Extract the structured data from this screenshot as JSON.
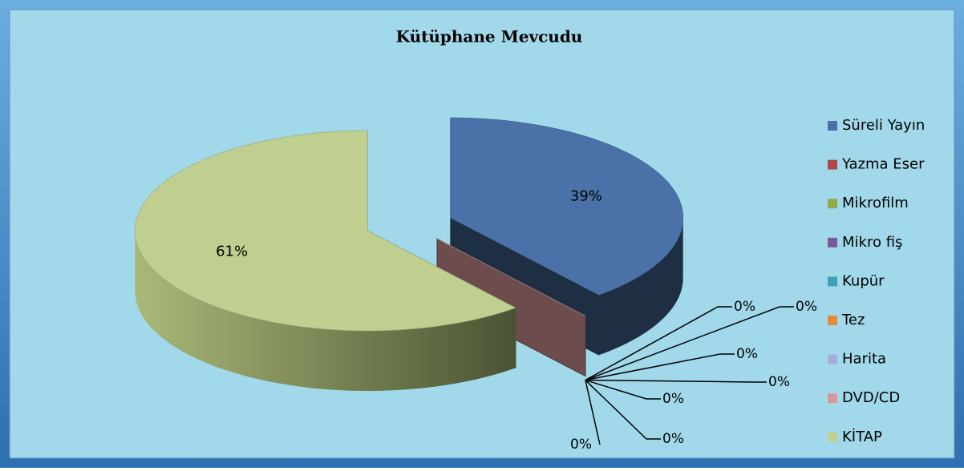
{
  "chart_data": {
    "type": "pie",
    "title": "Kütüphane Mevcudu",
    "categories": [
      "Süreli Yayın",
      "Yazma Eser",
      "Mikrofilm",
      "Mikro fiş",
      "Kupür",
      "Tez",
      "Harita",
      "DVD/CD",
      "KİTAP"
    ],
    "values": [
      39,
      0,
      0,
      0,
      0,
      0,
      0,
      0,
      61
    ],
    "value_labels": [
      "39%",
      "0%",
      "0%",
      "0%",
      "0%",
      "0%",
      "0%",
      "0%",
      "61%"
    ],
    "colors": [
      "#4a72a8",
      "#b04845",
      "#8eaa4a",
      "#7a5a9a",
      "#3fa0b8",
      "#e8883a",
      "#a0b0d8",
      "#d89898",
      "#bfcf90"
    ],
    "legend": "right"
  }
}
